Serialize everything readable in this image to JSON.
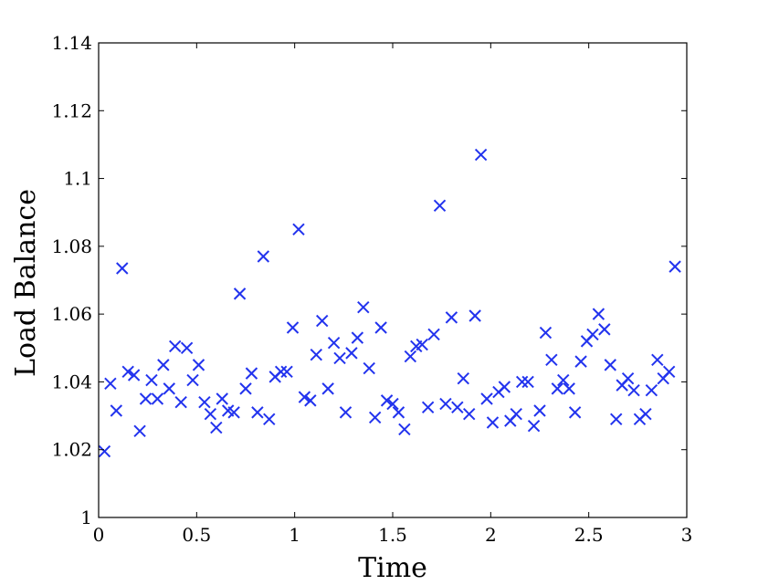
{
  "chart_data": {
    "type": "scatter",
    "title": "",
    "xlabel": "Time",
    "ylabel": "Load Balance",
    "xlim": [
      0,
      3
    ],
    "ylim": [
      1,
      1.14
    ],
    "xticks": [
      0,
      0.5,
      1,
      1.5,
      2,
      2.5,
      3
    ],
    "xtick_labels": [
      "0",
      "0.5",
      "1",
      "1.5",
      "2",
      "2.5",
      "3"
    ],
    "yticks": [
      1,
      1.02,
      1.04,
      1.06,
      1.08,
      1.1,
      1.12,
      1.14
    ],
    "ytick_labels": [
      "1",
      "1.02",
      "1.04",
      "1.06",
      "1.08",
      "1.1",
      "1.12",
      "1.14"
    ],
    "grid": false,
    "marker": "x",
    "color": "#2233ee",
    "series": [
      {
        "points": [
          [
            0.03,
            1.0195
          ],
          [
            0.06,
            1.0395
          ],
          [
            0.09,
            1.0315
          ],
          [
            0.12,
            1.0735
          ],
          [
            0.15,
            1.043
          ],
          [
            0.18,
            1.042
          ],
          [
            0.21,
            1.0255
          ],
          [
            0.24,
            1.035
          ],
          [
            0.27,
            1.0405
          ],
          [
            0.3,
            1.035
          ],
          [
            0.33,
            1.045
          ],
          [
            0.36,
            1.038
          ],
          [
            0.39,
            1.0505
          ],
          [
            0.42,
            1.034
          ],
          [
            0.45,
            1.05
          ],
          [
            0.48,
            1.0405
          ],
          [
            0.51,
            1.045
          ],
          [
            0.54,
            1.034
          ],
          [
            0.57,
            1.0305
          ],
          [
            0.6,
            1.0265
          ],
          [
            0.63,
            1.035
          ],
          [
            0.66,
            1.0315
          ],
          [
            0.69,
            1.031
          ],
          [
            0.72,
            1.066
          ],
          [
            0.75,
            1.038
          ],
          [
            0.78,
            1.0425
          ],
          [
            0.81,
            1.031
          ],
          [
            0.84,
            1.077
          ],
          [
            0.87,
            1.029
          ],
          [
            0.9,
            1.0415
          ],
          [
            0.93,
            1.043
          ],
          [
            0.96,
            1.043
          ],
          [
            0.99,
            1.056
          ],
          [
            1.02,
            1.085
          ],
          [
            1.05,
            1.0355
          ],
          [
            1.08,
            1.0345
          ],
          [
            1.11,
            1.048
          ],
          [
            1.14,
            1.058
          ],
          [
            1.17,
            1.038
          ],
          [
            1.2,
            1.0515
          ],
          [
            1.23,
            1.047
          ],
          [
            1.26,
            1.031
          ],
          [
            1.29,
            1.0485
          ],
          [
            1.32,
            1.053
          ],
          [
            1.35,
            1.062
          ],
          [
            1.38,
            1.044
          ],
          [
            1.41,
            1.0295
          ],
          [
            1.44,
            1.056
          ],
          [
            1.47,
            1.0345
          ],
          [
            1.5,
            1.0335
          ],
          [
            1.53,
            1.031
          ],
          [
            1.56,
            1.026
          ],
          [
            1.59,
            1.0475
          ],
          [
            1.62,
            1.0505
          ],
          [
            1.65,
            1.051
          ],
          [
            1.68,
            1.0325
          ],
          [
            1.71,
            1.054
          ],
          [
            1.74,
            1.092
          ],
          [
            1.77,
            1.0335
          ],
          [
            1.8,
            1.059
          ],
          [
            1.83,
            1.0325
          ],
          [
            1.86,
            1.041
          ],
          [
            1.89,
            1.0305
          ],
          [
            1.92,
            1.0595
          ],
          [
            1.95,
            1.107
          ],
          [
            1.98,
            1.035
          ],
          [
            2.01,
            1.028
          ],
          [
            2.04,
            1.037
          ],
          [
            2.07,
            1.0385
          ],
          [
            2.1,
            1.0285
          ],
          [
            2.13,
            1.0305
          ],
          [
            2.16,
            1.04
          ],
          [
            2.19,
            1.04
          ],
          [
            2.22,
            1.027
          ],
          [
            2.25,
            1.0315
          ],
          [
            2.28,
            1.0545
          ],
          [
            2.31,
            1.0465
          ],
          [
            2.34,
            1.038
          ],
          [
            2.37,
            1.0405
          ],
          [
            2.4,
            1.038
          ],
          [
            2.43,
            1.031
          ],
          [
            2.46,
            1.046
          ],
          [
            2.49,
            1.052
          ],
          [
            2.52,
            1.054
          ],
          [
            2.55,
            1.06
          ],
          [
            2.58,
            1.0555
          ],
          [
            2.61,
            1.045
          ],
          [
            2.64,
            1.029
          ],
          [
            2.67,
            1.039
          ],
          [
            2.7,
            1.041
          ],
          [
            2.73,
            1.0375
          ],
          [
            2.76,
            1.029
          ],
          [
            2.79,
            1.0305
          ],
          [
            2.82,
            1.0375
          ],
          [
            2.85,
            1.0465
          ],
          [
            2.88,
            1.041
          ],
          [
            2.91,
            1.043
          ],
          [
            2.94,
            1.074
          ]
        ]
      }
    ]
  }
}
